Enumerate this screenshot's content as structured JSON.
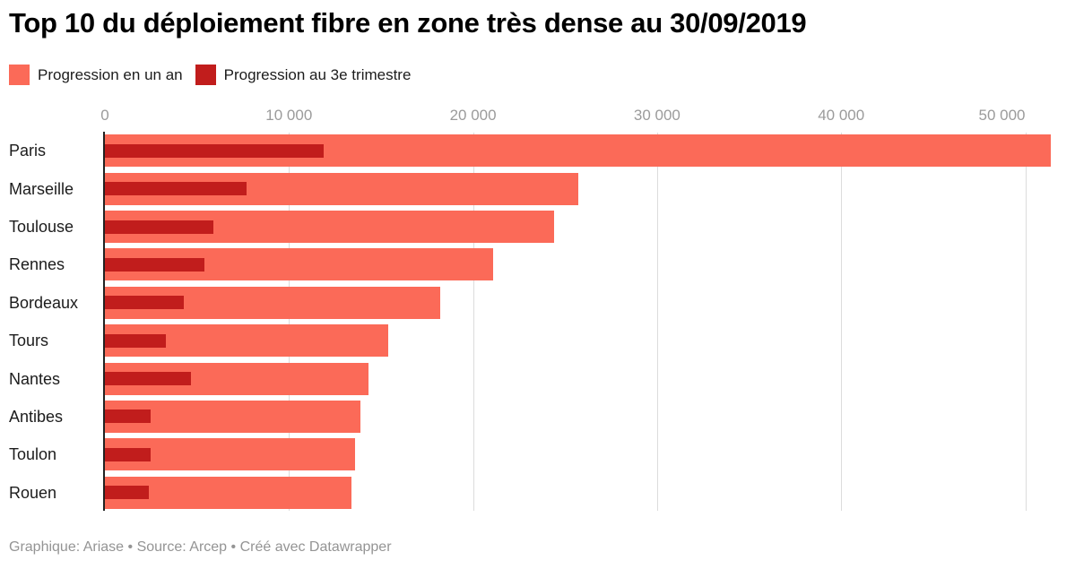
{
  "title": "Top 10 du déploiement fibre en zone très dense au 30/09/2019",
  "legend": {
    "items": [
      {
        "label": "Progression en un an",
        "color": "#fb6a58"
      },
      {
        "label": "Progression au 3e trimestre",
        "color": "#c11d1c"
      }
    ]
  },
  "footer": "Graphique: Ariase • Source: Arcep • Créé avec Datawrapper",
  "chart_data": {
    "type": "bar",
    "orientation": "horizontal",
    "title": "Top 10 du déploiement fibre en zone très dense au 30/09/2019",
    "categories": [
      "Paris",
      "Marseille",
      "Toulouse",
      "Rennes",
      "Bordeaux",
      "Tours",
      "Nantes",
      "Antibes",
      "Toulon",
      "Rouen"
    ],
    "series": [
      {
        "name": "Progression en un an",
        "color": "#fb6a58",
        "values": [
          51400,
          25700,
          24400,
          21100,
          18200,
          15400,
          14300,
          13900,
          13600,
          13400
        ]
      },
      {
        "name": "Progression au 3e trimestre",
        "color": "#c11d1c",
        "values": [
          11900,
          7700,
          5900,
          5400,
          4300,
          3300,
          4700,
          2500,
          2500,
          2400
        ]
      }
    ],
    "x_ticks": [
      0,
      10000,
      20000,
      30000,
      40000,
      50000
    ],
    "x_tick_labels": [
      "0",
      "10 000",
      "20 000",
      "30 000",
      "40 000",
      "50 000"
    ],
    "xlim": [
      0,
      52700
    ],
    "grid": "vertical",
    "legend_position": "top-left"
  }
}
